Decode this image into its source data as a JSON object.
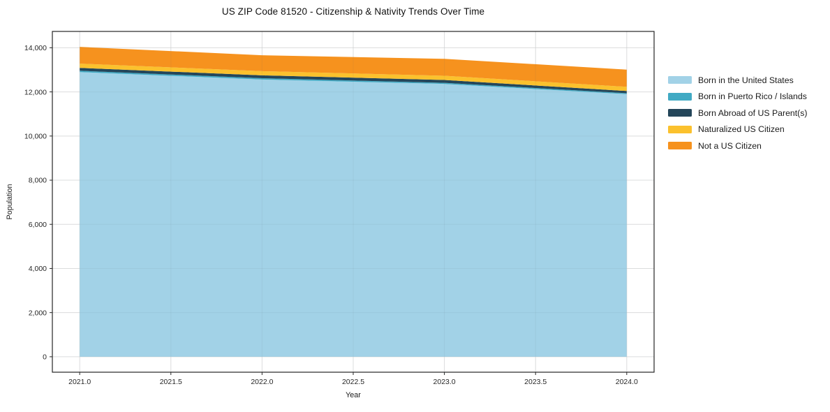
{
  "chart_data": {
    "type": "area",
    "stacked": true,
    "title": "US ZIP Code 81520 - Citizenship & Nativity Trends Over Time",
    "xlabel": "Year",
    "ylabel": "Population",
    "x": [
      2021,
      2022,
      2023,
      2024
    ],
    "series": [
      {
        "name": "Born in the United States",
        "color": "#A2D2E7",
        "values": [
          12900,
          12560,
          12360,
          11900
        ]
      },
      {
        "name": "Born in Puerto Rico / Islands",
        "color": "#41AAC4",
        "values": [
          60,
          60,
          50,
          40
        ]
      },
      {
        "name": "Born Abroad of US Parent(s)",
        "color": "#24465A",
        "values": [
          130,
          130,
          130,
          100
        ]
      },
      {
        "name": "Naturalized US Citizen",
        "color": "#FBC12D",
        "values": [
          190,
          190,
          190,
          190
        ]
      },
      {
        "name": "Not a US Citizen",
        "color": "#F6921E",
        "values": [
          760,
          720,
          770,
          780
        ]
      }
    ],
    "totals": [
      14040,
      13660,
      13500,
      13010
    ],
    "x_tick_labels": [
      "2021.0",
      "2021.5",
      "2022.0",
      "2022.5",
      "2023.0",
      "2023.5",
      "2024.0"
    ],
    "x_tick_values": [
      2021,
      2021.5,
      2022,
      2022.5,
      2023,
      2023.5,
      2024
    ],
    "y_tick_labels": [
      "0",
      "2,000",
      "4,000",
      "6,000",
      "8,000",
      "10,000",
      "12,000",
      "14,000"
    ],
    "y_tick_values": [
      0,
      2000,
      4000,
      6000,
      8000,
      10000,
      12000,
      14000
    ],
    "xlim": [
      2020.85,
      2024.15
    ],
    "ylim": [
      -700,
      14740
    ],
    "grid": true,
    "legend": {
      "position": "right",
      "frame": false
    }
  },
  "colors": {
    "background": "#ffffff",
    "grid": "#E7E7E7",
    "grid_overlay": "#5A6B73",
    "spine": "#262626",
    "tick_text": "#262626",
    "label_text": "#1a1a1a"
  }
}
